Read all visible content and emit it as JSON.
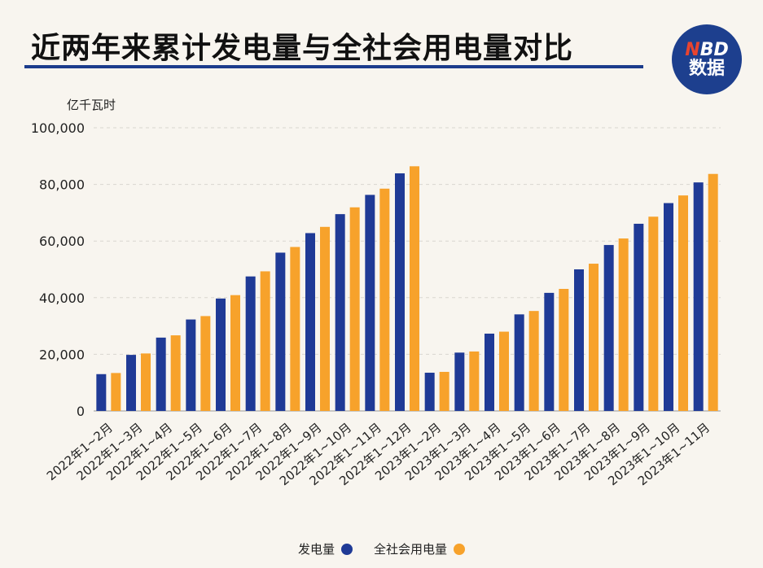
{
  "header": {
    "title": "近两年来累计发电量与全社会用电量对比"
  },
  "logo": {
    "line1_accent": "N",
    "line1_rest": "BD",
    "line2": "数据"
  },
  "colors": {
    "series1": "#1f3a96",
    "series2": "#f7a22b",
    "grid": "#d9d6cf",
    "title_underline": "#1c3c8c"
  },
  "chart_data": {
    "type": "bar",
    "title": "近两年来累计发电量与全社会用电量对比",
    "ylabel": "亿千瓦时",
    "ylim": [
      0,
      100000
    ],
    "yticks": [
      0,
      20000,
      40000,
      60000,
      80000,
      100000
    ],
    "ytick_labels": [
      "0",
      "20,000",
      "40,000",
      "60,000",
      "80,000",
      "100,000"
    ],
    "grid": true,
    "legend_position": "bottom",
    "categories": [
      "2022年1~2月",
      "2022年1~3月",
      "2022年1~4月",
      "2022年1~5月",
      "2022年1~6月",
      "2022年1~7月",
      "2022年1~8月",
      "2022年1~9月",
      "2022年1~10月",
      "2022年1~11月",
      "2022年1~12月",
      "2023年1~2月",
      "2023年1~3月",
      "2023年1~4月",
      "2023年1~5月",
      "2023年1~6月",
      "2023年1~7月",
      "2023年1~8月",
      "2023年1~9月",
      "2023年1~10月",
      "2023年1~11月"
    ],
    "series": [
      {
        "name": "发电量",
        "values": [
          13000,
          19800,
          25900,
          32300,
          39700,
          47500,
          55900,
          62800,
          69500,
          76300,
          83900,
          13500,
          20600,
          27300,
          34100,
          41700,
          50000,
          58600,
          66100,
          73400,
          80700
        ]
      },
      {
        "name": "全社会用电量",
        "values": [
          13400,
          20300,
          26700,
          33500,
          40900,
          49300,
          57900,
          65000,
          71900,
          78500,
          86400,
          13800,
          21000,
          28000,
          35300,
          43100,
          52000,
          60900,
          68600,
          76100,
          83700
        ]
      }
    ]
  }
}
